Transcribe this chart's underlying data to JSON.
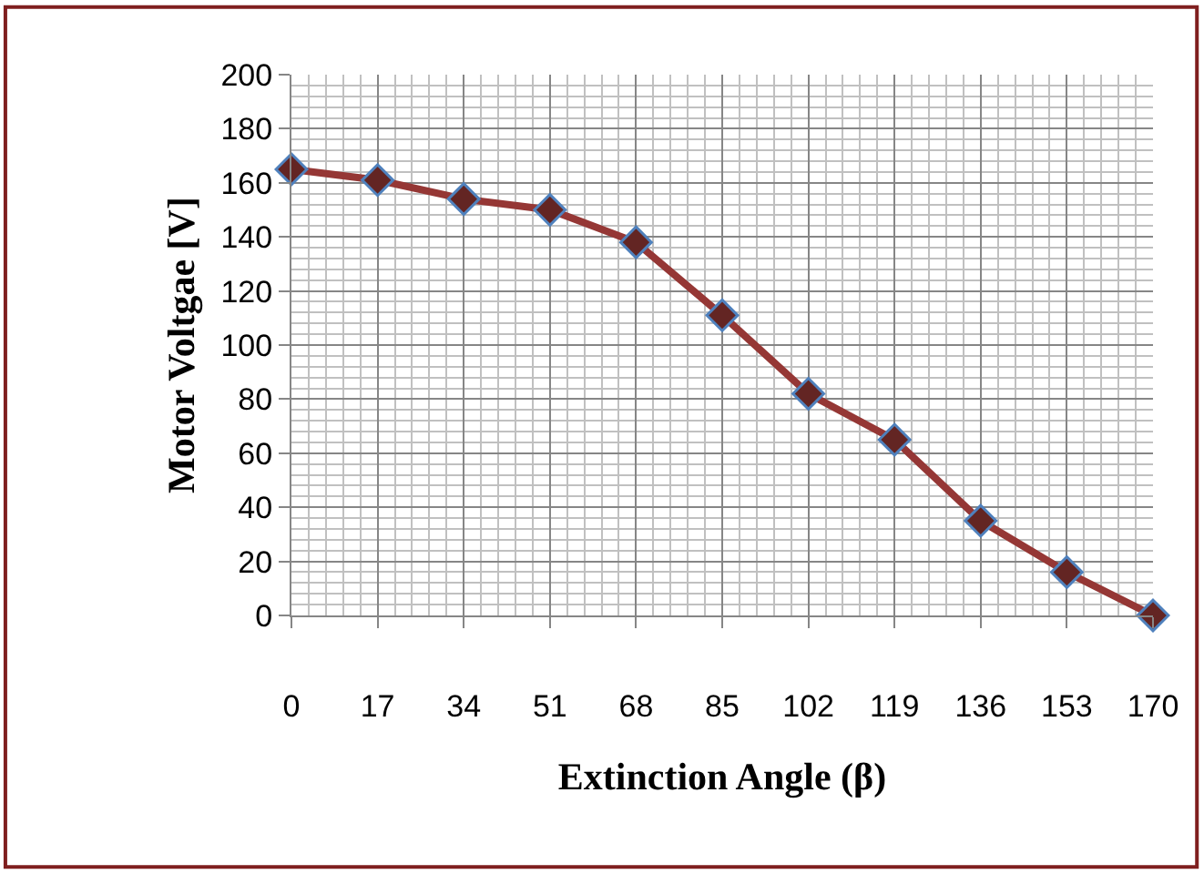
{
  "chart_data": {
    "type": "line",
    "xlabel": "Extinction Angle (β)",
    "ylabel": "Motor Voltgae [V]",
    "x": [
      0,
      17,
      34,
      51,
      68,
      85,
      102,
      119,
      136,
      153,
      170
    ],
    "series": [
      {
        "color": "#953735",
        "values": [
          165,
          161,
          154,
          150,
          138,
          111,
          82,
          65,
          35,
          16,
          0
        ]
      }
    ],
    "xlim": [
      0,
      170
    ],
    "xticks": [
      0,
      17,
      34,
      51,
      68,
      85,
      102,
      119,
      136,
      153,
      170
    ],
    "ylim": [
      0,
      200
    ],
    "yticks": [
      0,
      20,
      40,
      60,
      80,
      100,
      120,
      140,
      160,
      180,
      200
    ],
    "grid": true,
    "marker": "diamond",
    "line_style": "solid"
  }
}
